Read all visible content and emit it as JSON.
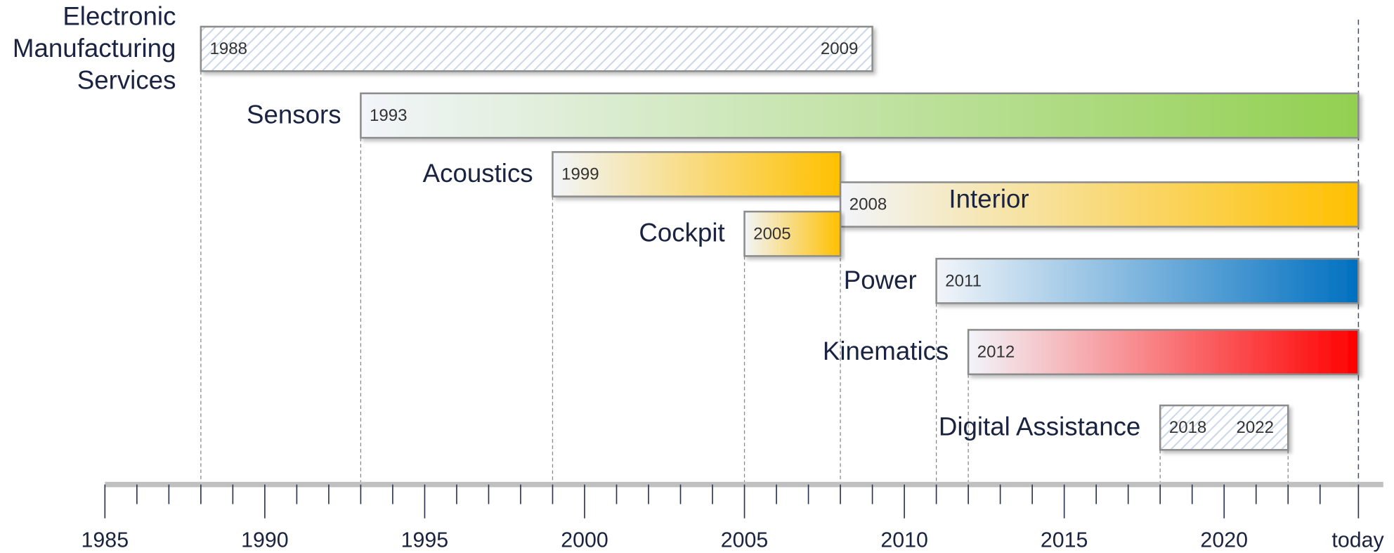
{
  "chart_data": {
    "type": "timeline",
    "bars": [
      {
        "name": [
          "Electronic",
          "Manufacturing",
          "Services"
        ],
        "start": 1988,
        "end": 2009,
        "end_printed": true,
        "style": "hatched",
        "color": "#dce6f2"
      },
      {
        "name": "Sensors",
        "start": 1993,
        "end": 2024.2,
        "end_printed": false,
        "style": "gradient",
        "color": "#92d050"
      },
      {
        "name": "Acoustics",
        "start": 1999,
        "end": 2008,
        "end_printed": false,
        "style": "gradient",
        "color": "#ffc000"
      },
      {
        "name": "Interior",
        "start": 2008,
        "end": 2024.2,
        "end_printed": false,
        "style": "gradient",
        "color": "#ffc000",
        "label_inside": true
      },
      {
        "name": "Cockpit",
        "start": 2005,
        "end": 2008,
        "end_printed": false,
        "style": "gradient",
        "color": "#ffc000"
      },
      {
        "name": "Power",
        "start": 2011,
        "end": 2024.2,
        "end_printed": false,
        "style": "gradient",
        "color": "#0070c0"
      },
      {
        "name": "Kinematics",
        "start": 2012,
        "end": 2024.2,
        "end_printed": false,
        "style": "gradient",
        "color": "#ff0000"
      },
      {
        "name": "Digital Assistance",
        "start": 2018,
        "end": 2022,
        "end_printed": true,
        "style": "hatched",
        "color": "#dce6f2"
      }
    ],
    "xlim": [
      1985,
      2024.2
    ],
    "xticks": [
      1985,
      1990,
      1995,
      2000,
      2005,
      2010,
      2015,
      2020,
      {
        "value": 2024.2,
        "label": "today"
      }
    ],
    "xminor": [
      1986,
      1987,
      1988,
      1989,
      1991,
      1992,
      1993,
      1994,
      1996,
      1997,
      1998,
      1999,
      2001,
      2002,
      2003,
      2004,
      2006,
      2007,
      2008,
      2009,
      2011,
      2012,
      2013,
      2014,
      2016,
      2017,
      2018,
      2019,
      2021,
      2022,
      2023
    ]
  }
}
